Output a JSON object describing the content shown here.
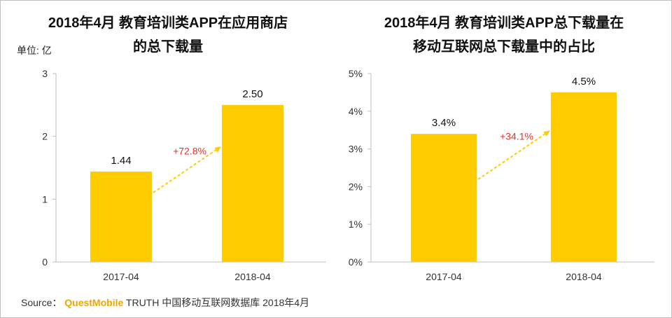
{
  "chart_data": [
    {
      "type": "bar",
      "title_lines": [
        "2018年4月 教育培训类APP在应用商店",
        "的总下载量"
      ],
      "unit_label": "单位: 亿",
      "categories": [
        "2017-04",
        "2018-04"
      ],
      "values": [
        1.44,
        2.5
      ],
      "value_labels": [
        "1.44",
        "2.50"
      ],
      "ylim": [
        0,
        3
      ],
      "yticks": [
        0,
        1,
        2,
        3
      ],
      "ytick_labels": [
        "0",
        "1",
        "2",
        "3"
      ],
      "growth_label": "+72.8%",
      "bar_color": "#FFCC00",
      "arrow_color": "#FFCC00",
      "growth_color": "#E8322E"
    },
    {
      "type": "bar",
      "title_lines": [
        "2018年4月 教育培训类APP总下载量在",
        "移动互联网总下载量中的占比"
      ],
      "categories": [
        "2017-04",
        "2018-04"
      ],
      "values": [
        3.4,
        4.5
      ],
      "value_labels": [
        "3.4%",
        "4.5%"
      ],
      "ylim": [
        0,
        5
      ],
      "yticks": [
        0,
        1,
        2,
        3,
        4,
        5
      ],
      "ytick_labels": [
        "0%",
        "1%",
        "2%",
        "3%",
        "4%",
        "5%"
      ],
      "growth_label": "+34.1%",
      "bar_color": "#FFCC00",
      "arrow_color": "#FFCC00",
      "growth_color": "#E8322E"
    }
  ],
  "source": {
    "prefix": "Source：",
    "brand": "QuestMobile",
    "text": "TRUTH 中国移动互联网数据库 2018年4月"
  }
}
